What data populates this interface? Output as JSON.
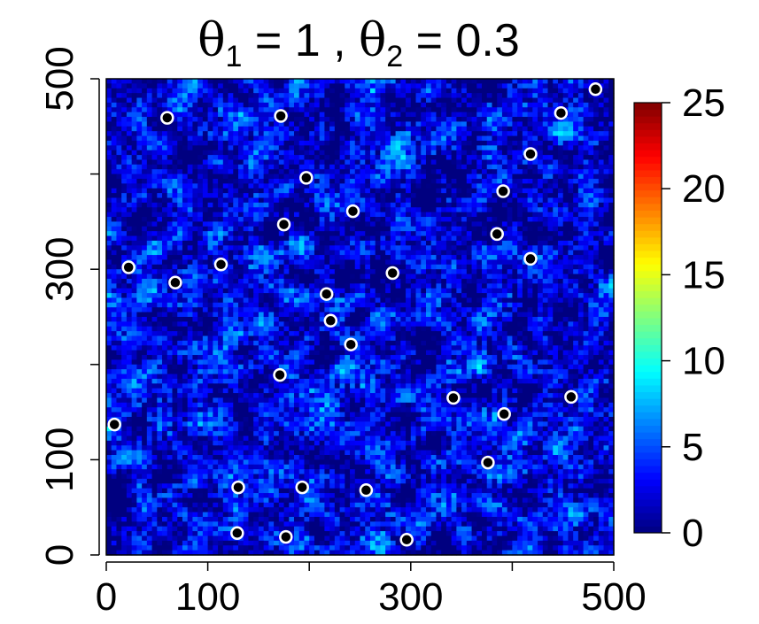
{
  "chart_data": {
    "type": "heatmap",
    "title": {
      "theta1_sym": "θ",
      "theta1_sub": "1",
      "theta1_eq": " = 1 , ",
      "theta2_sym": "θ",
      "theta2_sub": "2",
      "theta2_eq": " = 0.3"
    },
    "xlim": [
      0,
      500
    ],
    "ylim": [
      0,
      500
    ],
    "x_ticks": [
      0,
      100,
      200,
      300,
      400,
      500
    ],
    "x_tick_labels": [
      "0",
      "100",
      "",
      "300",
      "",
      "500"
    ],
    "y_ticks": [
      0,
      100,
      200,
      300,
      400,
      500
    ],
    "y_tick_labels": [
      "0",
      "100",
      "",
      "300",
      "",
      "500"
    ],
    "colorbar": {
      "range": [
        0,
        25
      ],
      "ticks": [
        "0",
        "5",
        "10",
        "15",
        "20",
        "25"
      ],
      "colormap": "jet"
    },
    "grid_cells": 100,
    "points": [
      [
        60,
        459
      ],
      [
        172,
        461
      ],
      [
        482,
        489
      ],
      [
        448,
        464
      ],
      [
        418,
        421
      ],
      [
        197,
        396
      ],
      [
        391,
        382
      ],
      [
        243,
        361
      ],
      [
        175,
        347
      ],
      [
        385,
        337
      ],
      [
        22,
        302
      ],
      [
        113,
        305
      ],
      [
        418,
        311
      ],
      [
        282,
        296
      ],
      [
        68,
        286
      ],
      [
        217,
        274
      ],
      [
        221,
        246
      ],
      [
        241,
        221
      ],
      [
        171,
        189
      ],
      [
        342,
        165
      ],
      [
        458,
        166
      ],
      [
        392,
        148
      ],
      [
        8,
        137
      ],
      [
        376,
        97
      ],
      [
        130,
        71
      ],
      [
        193,
        71
      ],
      [
        256,
        68
      ],
      [
        129,
        23
      ],
      [
        177,
        19
      ],
      [
        296,
        16
      ]
    ]
  }
}
